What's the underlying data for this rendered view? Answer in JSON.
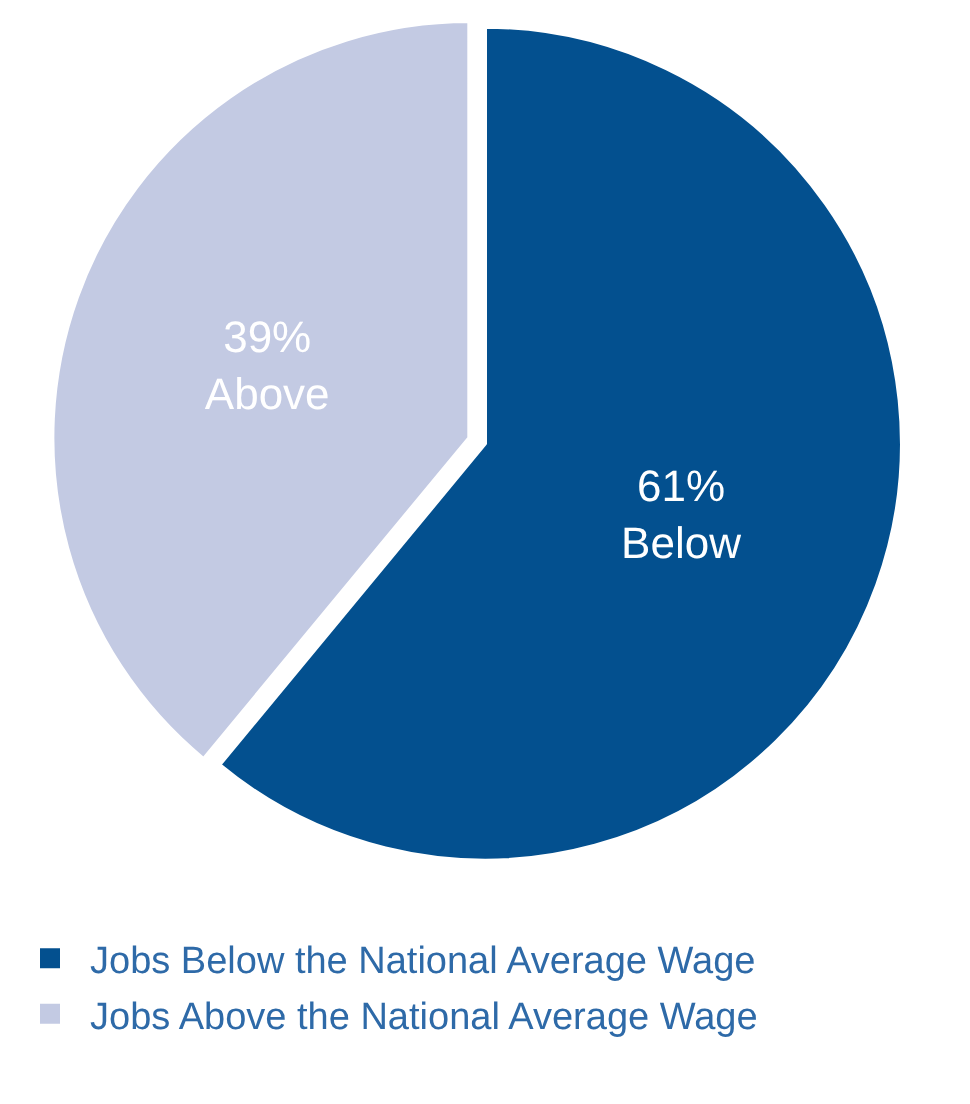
{
  "chart_data": {
    "type": "pie",
    "categories": [
      "Jobs Below the National Average Wage",
      "Jobs Above the National Average Wage"
    ],
    "values": [
      61,
      39
    ],
    "colors": [
      "#03508f",
      "#c3cae3"
    ],
    "value_labels": [
      "61%\nBelow",
      "39%\nAbove"
    ],
    "legend": "bottom"
  }
}
